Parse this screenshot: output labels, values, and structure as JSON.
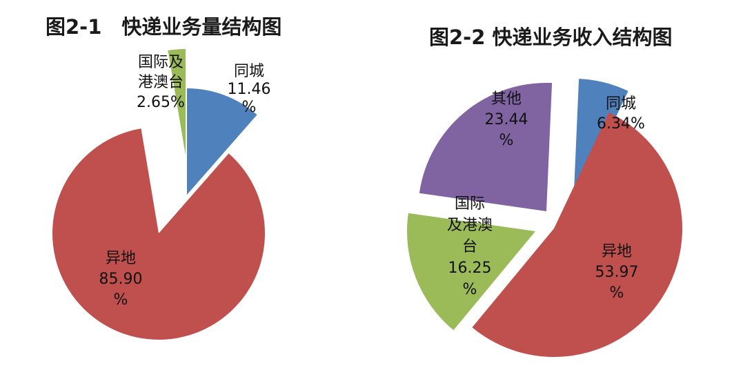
{
  "chart_data": [
    {
      "type": "pie",
      "title": "图2-1　快递业务量结构图",
      "exploded": true,
      "slices": [
        {
          "name": "同城",
          "value": 11.46,
          "value_text": "11.46",
          "unit": "%",
          "color": "#4F81BD"
        },
        {
          "name": "异地",
          "value": 85.9,
          "value_text": "85.90",
          "unit": "%",
          "color": "#C0504D"
        },
        {
          "name": "国际及港澳台",
          "value": 2.65,
          "value_text": "2.65",
          "unit": "%",
          "color": "#9BBB59"
        }
      ]
    },
    {
      "type": "pie",
      "title": "图2-2 快递业务收入结构图",
      "exploded": true,
      "slices": [
        {
          "name": "同城",
          "value": 6.34,
          "value_text": "6.34",
          "unit": "%",
          "color": "#4F81BD"
        },
        {
          "name": "异地",
          "value": 53.97,
          "value_text": "53.97",
          "unit": "%",
          "color": "#C0504D"
        },
        {
          "name": "国际及港澳台",
          "value": 16.25,
          "value_text": "16.25",
          "unit": "%",
          "color": "#9BBB59"
        },
        {
          "name": "其他",
          "value": 23.44,
          "value_text": "23.44",
          "unit": "%",
          "color": "#8064A2"
        }
      ]
    }
  ]
}
